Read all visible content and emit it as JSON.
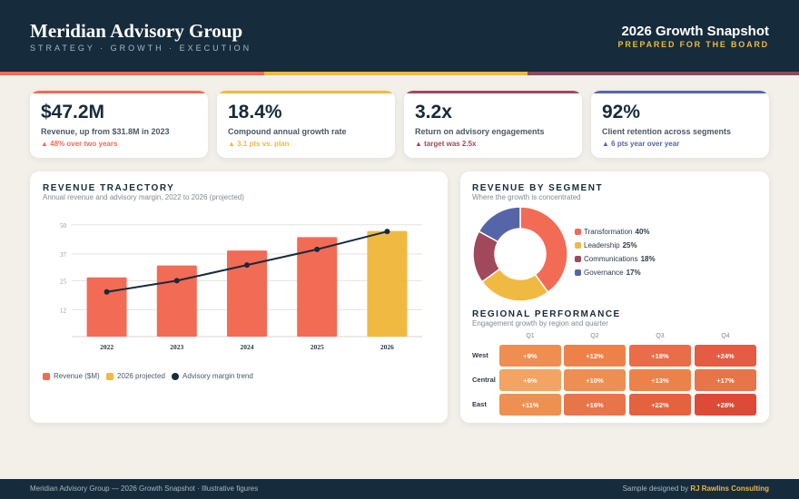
{
  "header": {
    "brand_title": "Meridian Advisory Group",
    "brand_subtitle": "STRATEGY · GROWTH · EXECUTION",
    "snapshot_title": "2026 Growth Snapshot",
    "snapshot_subtitle": "PREPARED FOR THE BOARD"
  },
  "stripe_colors": [
    "#f26b55",
    "#f0b942",
    "#8e4a5c"
  ],
  "kpis": [
    {
      "value": "$47.2M",
      "label": "Revenue, up from $31.8M in 2023",
      "delta": "▲ 48% over two years",
      "color": "#f26b55"
    },
    {
      "value": "18.4%",
      "label": "Compound annual growth rate",
      "delta": "▲ 3.1 pts vs. plan",
      "color": "#f0b942"
    },
    {
      "value": "3.2x",
      "label": "Return on advisory engagements",
      "delta": "▲ target was 2.5x",
      "color": "#a0485c"
    },
    {
      "value": "92%",
      "label": "Client retention across segments",
      "delta": "▲ 6 pts year over year",
      "color": "#5566a8"
    }
  ],
  "revenue": {
    "title": "REVENUE TRAJECTORY",
    "subtitle": "Annual revenue and advisory margin, 2022 to 2026 (projected)",
    "legend": [
      {
        "label": "Revenue ($M)",
        "color": "#f26b55"
      },
      {
        "label": "2026 projected",
        "color": "#f0b942"
      },
      {
        "label": "Advisory margin trend",
        "color": "#162b3b"
      }
    ]
  },
  "segment": {
    "title": "REVENUE BY SEGMENT",
    "subtitle": "Where the growth is concentrated",
    "items": [
      {
        "name": "Transformation",
        "pct_label": "40%",
        "value": 40,
        "color": "#f26b55"
      },
      {
        "name": "Leadership",
        "pct_label": "25%",
        "value": 25,
        "color": "#f0b942"
      },
      {
        "name": "Communications",
        "pct_label": "18%",
        "value": 18,
        "color": "#a0485c"
      },
      {
        "name": "Governance",
        "pct_label": "17%",
        "value": 17,
        "color": "#5566a8"
      }
    ]
  },
  "regional": {
    "title": "REGIONAL PERFORMANCE",
    "subtitle": "Engagement growth by region and quarter",
    "columns": [
      "Q1",
      "Q2",
      "Q3",
      "Q4"
    ],
    "rows": [
      {
        "region": "West",
        "cells": [
          {
            "text": "+9%",
            "color": "#ee8e52"
          },
          {
            "text": "+12%",
            "color": "#ec8249"
          },
          {
            "text": "+18%",
            "color": "#e86d48"
          },
          {
            "text": "+24%",
            "color": "#e45c41"
          }
        ]
      },
      {
        "region": "Central",
        "cells": [
          {
            "text": "+6%",
            "color": "#f3a462"
          },
          {
            "text": "+10%",
            "color": "#ee8e52"
          },
          {
            "text": "+13%",
            "color": "#ec8249"
          },
          {
            "text": "+17%",
            "color": "#e8744a"
          }
        ]
      },
      {
        "region": "East",
        "cells": [
          {
            "text": "+11%",
            "color": "#ee9050"
          },
          {
            "text": "+16%",
            "color": "#e8744a"
          },
          {
            "text": "+22%",
            "color": "#e5623f"
          },
          {
            "text": "+28%",
            "color": "#dd4a36"
          }
        ]
      }
    ]
  },
  "chart_data": [
    {
      "type": "bar",
      "categories": [
        "2022",
        "2023",
        "2024",
        "2025",
        "2026"
      ],
      "series": [
        {
          "name": "Revenue ($M)",
          "values": [
            26.5,
            31.8,
            38.5,
            44.5,
            47.2
          ],
          "color": "#f26b55"
        },
        {
          "name": "Advisory margin trend",
          "type": "line",
          "values": [
            20,
            25,
            32,
            39,
            47
          ],
          "color": "#162b3b"
        }
      ],
      "highlight": {
        "category": "2026",
        "label": "2026 projected",
        "color": "#f0b942"
      },
      "yticks": [
        12,
        25,
        37,
        50
      ],
      "ylim": [
        0,
        56
      ],
      "grid": true,
      "legend_position": "bottom-left"
    },
    {
      "type": "pie",
      "labels": [
        "Transformation",
        "Leadership",
        "Communications",
        "Governance"
      ],
      "values": [
        40,
        25,
        18,
        17
      ]
    },
    {
      "type": "heatmap",
      "x": [
        "Q1",
        "Q2",
        "Q3",
        "Q4"
      ],
      "y": [
        "West",
        "Central",
        "East"
      ],
      "values": [
        [
          9,
          12,
          18,
          24
        ],
        [
          6,
          10,
          13,
          17
        ],
        [
          11,
          16,
          22,
          28
        ]
      ]
    }
  ],
  "footer": {
    "left": "Meridian Advisory Group — 2026 Growth Snapshot · Illustrative figures",
    "right_prefix": "Sample designed by",
    "right_brand": "RJ Rawlins Consulting"
  }
}
